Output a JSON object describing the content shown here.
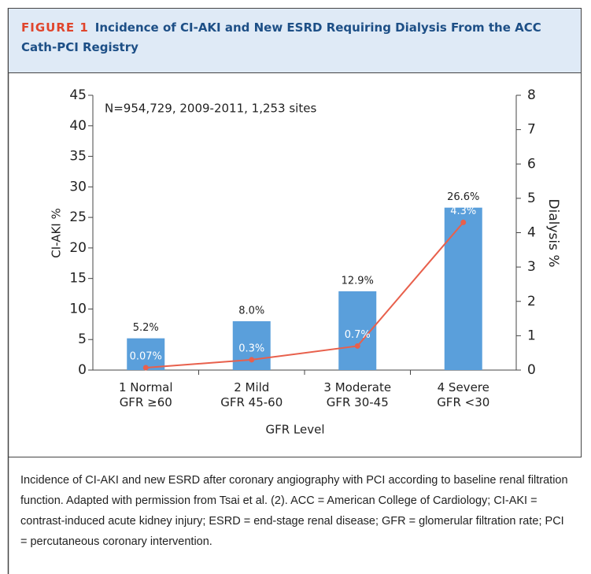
{
  "figure": {
    "label": "FIGURE 1",
    "title": "Incidence of CI-AKI and New ESRD Requiring Dialysis From the ACC Cath-PCI Registry"
  },
  "chart_data": {
    "type": "bar",
    "annotation": "N=954,729, 2009-2011, 1,253 sites",
    "x_label": "GFR Level",
    "y_label": "CI-AKI %",
    "y2_label": "Dialysis %",
    "categories": [
      "1 Normal\nGFR ≥60",
      "2 Mild\nGFR 45-60",
      "3 Moderate\nGFR 30-45",
      "4 Severe\nGFR <30"
    ],
    "series": [
      {
        "name": "CI-AKI",
        "type": "bar",
        "color": "#5a9fdb",
        "values": [
          5.2,
          8.0,
          12.9,
          26.6
        ],
        "value_labels": [
          "5.2%",
          "8.0%",
          "12.9%",
          "26.6%"
        ]
      },
      {
        "name": "Dialysis",
        "type": "line",
        "axis": "y2",
        "color": "#e8604c",
        "values": [
          0.07,
          0.3,
          0.7,
          4.3
        ],
        "value_labels": [
          "0.07%",
          "0.3%",
          "0.7%",
          "4.3%"
        ]
      }
    ],
    "ylim": [
      0,
      45
    ],
    "yticks": [
      0,
      5,
      10,
      15,
      20,
      25,
      30,
      35,
      40,
      45
    ],
    "y2lim": [
      0,
      8
    ],
    "y2ticks": [
      0,
      1,
      2,
      3,
      4,
      5,
      6,
      7,
      8
    ]
  },
  "caption": "Incidence of CI-AKI and new ESRD after coronary angiography with PCI according to baseline renal filtration function. Adapted with permission from Tsai et al. (2). ACC = American College of Cardiology; CI-AKI = contrast-induced acute kidney injury; ESRD = end-stage renal disease; GFR = glomerular filtration rate; PCI = percutaneous coronary intervention."
}
